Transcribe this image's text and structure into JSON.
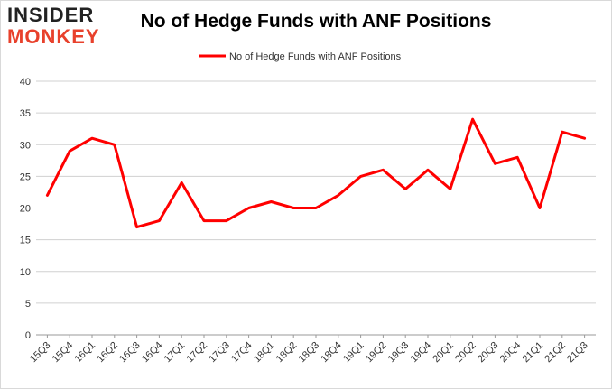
{
  "logo": {
    "line1": "INSIDER",
    "line2": "MONKEY"
  },
  "chart_data": {
    "type": "line",
    "title": "No of Hedge Funds with ANF Positions",
    "xlabel": "",
    "ylabel": "",
    "categories": [
      "15Q3",
      "15Q4",
      "16Q1",
      "16Q2",
      "16Q3",
      "16Q4",
      "17Q1",
      "17Q2",
      "17Q3",
      "17Q4",
      "18Q1",
      "18Q2",
      "18Q3",
      "18Q4",
      "19Q1",
      "19Q2",
      "19Q3",
      "19Q4",
      "20Q1",
      "20Q2",
      "20Q3",
      "20Q4",
      "21Q1",
      "21Q2",
      "21Q3"
    ],
    "series": [
      {
        "name": "No of Hedge Funds with ANF Positions",
        "color": "#ff0000",
        "values": [
          22,
          29,
          31,
          30,
          17,
          18,
          24,
          18,
          18,
          20,
          21,
          20,
          20,
          22,
          25,
          26,
          23,
          26,
          23,
          34,
          27,
          28,
          20,
          32,
          31
        ]
      }
    ],
    "ylim": [
      0,
      40
    ],
    "yticks": [
      0,
      5,
      10,
      15,
      20,
      25,
      30,
      35,
      40
    ],
    "grid": true,
    "legend": "top-center"
  }
}
